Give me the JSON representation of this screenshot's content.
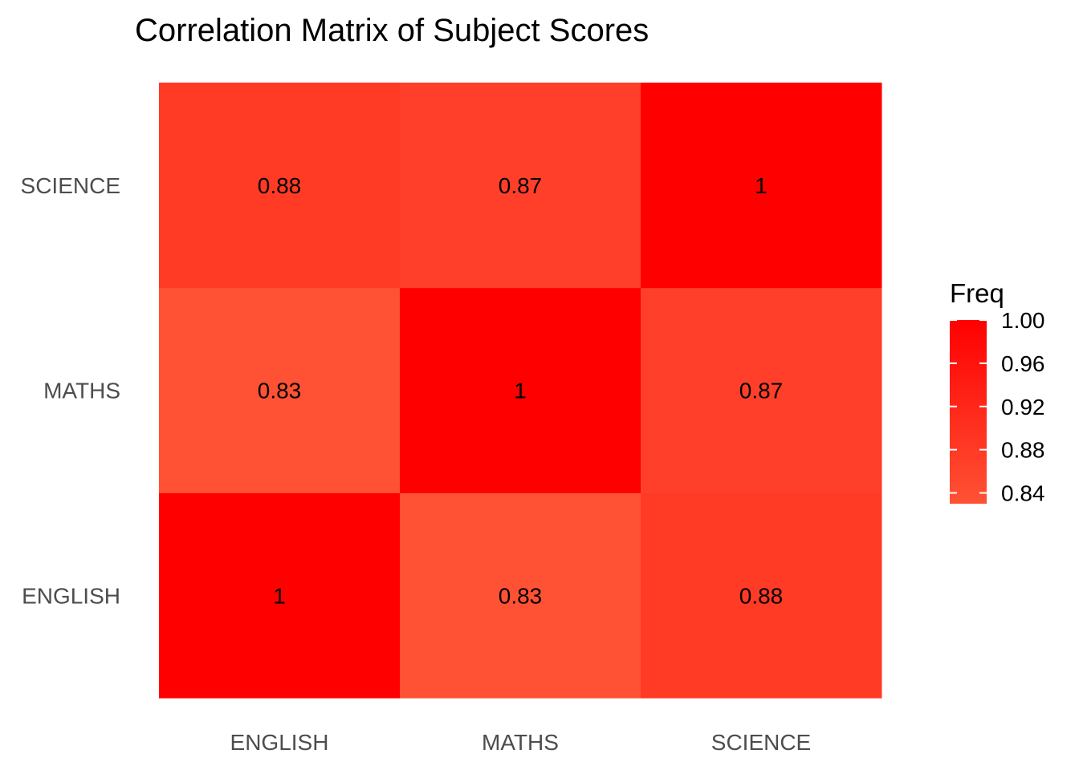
{
  "chart_data": {
    "type": "heatmap",
    "title": "Correlation Matrix of Subject Scores",
    "x_categories": [
      "ENGLISH",
      "MATHS",
      "SCIENCE"
    ],
    "y_categories": [
      "ENGLISH",
      "MATHS",
      "SCIENCE"
    ],
    "cells": [
      {
        "x": "ENGLISH",
        "y": "ENGLISH",
        "value": 1.0,
        "label": "1"
      },
      {
        "x": "MATHS",
        "y": "ENGLISH",
        "value": 0.83,
        "label": "0.83"
      },
      {
        "x": "SCIENCE",
        "y": "ENGLISH",
        "value": 0.88,
        "label": "0.88"
      },
      {
        "x": "ENGLISH",
        "y": "MATHS",
        "value": 0.83,
        "label": "0.83"
      },
      {
        "x": "MATHS",
        "y": "MATHS",
        "value": 1.0,
        "label": "1"
      },
      {
        "x": "SCIENCE",
        "y": "MATHS",
        "value": 0.87,
        "label": "0.87"
      },
      {
        "x": "ENGLISH",
        "y": "SCIENCE",
        "value": 0.88,
        "label": "0.88"
      },
      {
        "x": "MATHS",
        "y": "SCIENCE",
        "value": 0.87,
        "label": "0.87"
      },
      {
        "x": "SCIENCE",
        "y": "SCIENCE",
        "value": 1.0,
        "label": "1"
      }
    ],
    "legend": {
      "title": "Freq",
      "position": "right",
      "range": [
        0.83,
        1.0
      ],
      "ticks": [
        "1.00",
        "0.96",
        "0.92",
        "0.88",
        "0.84"
      ],
      "tick_values": [
        1.0,
        0.96,
        0.92,
        0.88,
        0.84
      ]
    },
    "colors": {
      "low": "#ff5235",
      "high": "#ff0000"
    },
    "grid": false
  }
}
